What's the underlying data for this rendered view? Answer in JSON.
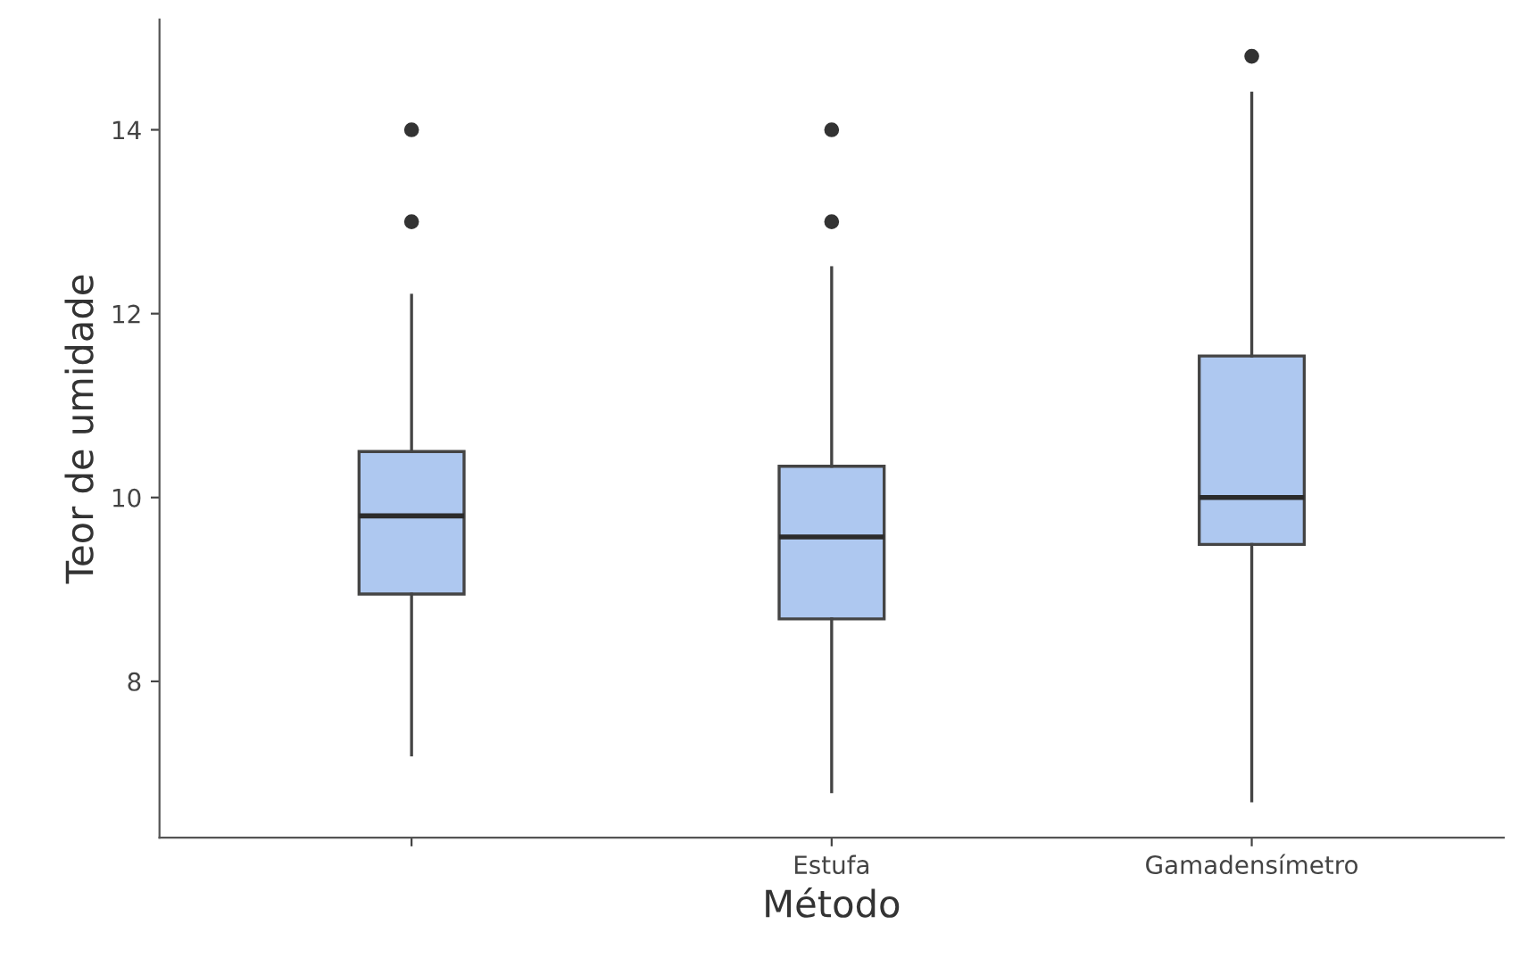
{
  "chart_data": {
    "type": "box",
    "xlabel": "Método",
    "ylabel": "Teor de umidade",
    "categories": [
      null,
      "Estufa",
      "Gamadensímetro"
    ],
    "boxes": [
      {
        "low": 7.2,
        "q1": 8.95,
        "median": 9.8,
        "q3": 10.5,
        "high": 12.2,
        "outliers": [
          13,
          14
        ]
      },
      {
        "low": 6.8,
        "q1": 8.68,
        "median": 9.57,
        "q3": 10.34,
        "high": 12.5,
        "outliers": [
          13,
          14
        ]
      },
      {
        "low": 6.7,
        "q1": 9.49,
        "median": 10.0,
        "q3": 11.54,
        "high": 14.4,
        "outliers": [
          14.8
        ]
      }
    ],
    "color": "#aec8f0",
    "ylim": [
      6.3,
      15.2
    ],
    "yticks": [
      8,
      10,
      12,
      14
    ],
    "grid": false
  }
}
